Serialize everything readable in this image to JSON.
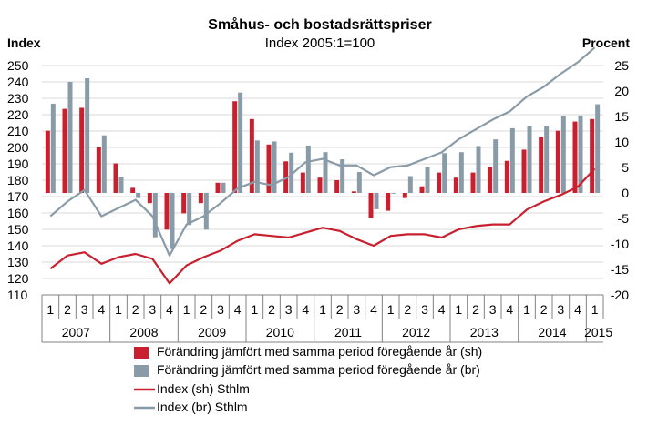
{
  "chart_data": {
    "type": "bar",
    "title": "Småhus- och bostadsrättspriser",
    "subtitle": "Index 2005:1=100",
    "left_axis_label": "Index",
    "right_axis_label": "Procent",
    "left_ylim": [
      110,
      250
    ],
    "left_ticks": [
      "250",
      "240",
      "230",
      "220",
      "210",
      "200",
      "190",
      "180",
      "170",
      "160",
      "150",
      "140",
      "130",
      "120",
      "110"
    ],
    "right_ylim": [
      -20,
      25
    ],
    "right_ticks": [
      "25",
      "20",
      "15",
      "10",
      "5",
      "0",
      "-5",
      "-10",
      "-15",
      "-20"
    ],
    "quarters": [
      "1",
      "2",
      "3",
      "4",
      "1",
      "2",
      "3",
      "4",
      "1",
      "2",
      "3",
      "4",
      "1",
      "2",
      "3",
      "4",
      "1",
      "2",
      "3",
      "4",
      "1",
      "2",
      "3",
      "4",
      "1",
      "2",
      "3",
      "4",
      "1",
      "2",
      "3",
      "4",
      "1"
    ],
    "years": [
      "2007",
      "2008",
      "2009",
      "2010",
      "2011",
      "2012",
      "2013",
      "2014",
      "2015"
    ],
    "series": [
      {
        "name": "Förändring jämfört med samma period föregående år (sh)",
        "type": "bar",
        "axis": "right",
        "color": "#c8202e",
        "values": [
          12.2,
          16.5,
          16.7,
          9.0,
          5.8,
          1.0,
          -2.0,
          -7.2,
          -4.0,
          -2.0,
          2.0,
          18.0,
          14.5,
          9.5,
          6.2,
          4.0,
          3.0,
          2.5,
          0.3,
          -5.0,
          -3.5,
          -1.0,
          1.3,
          4.0,
          3.0,
          4.0,
          5.0,
          6.3,
          8.5,
          11.0,
          12.2,
          14.0,
          14.5
        ]
      },
      {
        "name": "Förändring jämfört med samma period föregående år (br)",
        "type": "bar",
        "axis": "right",
        "color": "#8a9ba8",
        "values": [
          17.5,
          21.8,
          22.5,
          11.3,
          3.2,
          -1.0,
          -8.7,
          -11.0,
          -6.3,
          -7.2,
          2.0,
          19.7,
          10.3,
          10.1,
          7.9,
          9.3,
          8.0,
          6.6,
          4.1,
          -3.2,
          0.0,
          3.3,
          5.1,
          7.8,
          8.0,
          9.2,
          10.5,
          12.7,
          13.1,
          13.1,
          15.0,
          15.2,
          17.4
        ]
      },
      {
        "name": "Index (sh) Sthlm",
        "type": "line",
        "axis": "left",
        "color": "#c8202e",
        "values": [
          126,
          134,
          136,
          129,
          133,
          135,
          132,
          117,
          128,
          133,
          137,
          143,
          147,
          146,
          145,
          148,
          151,
          149,
          144,
          140,
          146,
          147,
          147,
          145,
          150,
          152,
          153,
          153,
          162,
          167,
          171,
          176,
          187
        ]
      },
      {
        "name": "Index (br) Sthlm",
        "type": "line",
        "axis": "left",
        "color": "#8a9ba8",
        "values": [
          158,
          167,
          174,
          158,
          163,
          168,
          158,
          134,
          153,
          158,
          166,
          175,
          179,
          177,
          182,
          191,
          193,
          189,
          189,
          183,
          188,
          189,
          193,
          197,
          205,
          211,
          217,
          222,
          231,
          237,
          245,
          252,
          261
        ]
      }
    ],
    "grid": "horizontal"
  }
}
